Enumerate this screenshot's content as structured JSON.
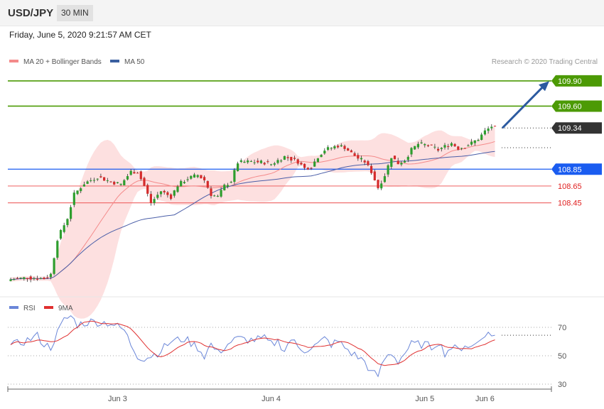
{
  "header": {
    "symbol": "USD/JPY",
    "timeframe": "30 MIN"
  },
  "datetime": "Friday, June 5, 2020 9:21:57 AM CET",
  "copyright": "Research © 2020 Trading Central",
  "colors": {
    "bull": "#2e9e2e",
    "bear": "#d52b2b",
    "green_level": "#4c9a05",
    "blue_level": "#1a5cf0",
    "red_level": "#f07070",
    "ma20": "#f48a8a",
    "ma50": "#4a5ea8",
    "band_fill": "#fde0e0",
    "current": "#333333",
    "arrow": "#2c5aa0",
    "rsi": "#6a86d8",
    "rsi_ma": "#e03030"
  },
  "chart_data": {
    "type": "candlestick",
    "legend": [
      {
        "name": "MA 20 + Bollinger Bands",
        "color": "#f48a8a"
      },
      {
        "name": "MA 50",
        "color": "#3a5fa0"
      }
    ],
    "ylim": [
      107.4,
      109.95
    ],
    "levels": [
      {
        "value": 109.9,
        "label": "109.90",
        "kind": "resistance"
      },
      {
        "value": 109.6,
        "label": "109.60",
        "kind": "resistance"
      },
      {
        "value": 108.85,
        "label": "108.85",
        "kind": "pivot"
      },
      {
        "value": 108.65,
        "label": "108.65",
        "kind": "support"
      },
      {
        "value": 108.45,
        "label": "108.45",
        "kind": "support"
      }
    ],
    "current": {
      "value": 109.34,
      "label": "109.34"
    },
    "x_labels": [
      {
        "label": "Jun 3",
        "bar": 32
      },
      {
        "label": "Jun 4",
        "bar": 78
      },
      {
        "label": "Jun 5",
        "bar": 124
      },
      {
        "label": "Jun 6",
        "bar": 142
      }
    ],
    "projection": {
      "from_bar": 145,
      "from_price": 109.34,
      "to_bar": 158,
      "to_price": 109.88
    },
    "anchors": [
      [
        0,
        107.54
      ],
      [
        5,
        107.56
      ],
      [
        10,
        107.55
      ],
      [
        12,
        107.6
      ],
      [
        14,
        108.02
      ],
      [
        17,
        108.27
      ],
      [
        19,
        108.55
      ],
      [
        22,
        108.68
      ],
      [
        26,
        108.76
      ],
      [
        30,
        108.7
      ],
      [
        33,
        108.67
      ],
      [
        36,
        108.82
      ],
      [
        38,
        108.82
      ],
      [
        40,
        108.65
      ],
      [
        42,
        108.45
      ],
      [
        45,
        108.59
      ],
      [
        48,
        108.52
      ],
      [
        50,
        108.66
      ],
      [
        53,
        108.74
      ],
      [
        56,
        108.78
      ],
      [
        58,
        108.72
      ],
      [
        60,
        108.55
      ],
      [
        62,
        108.52
      ],
      [
        64,
        108.65
      ],
      [
        66,
        108.71
      ],
      [
        68,
        108.93
      ],
      [
        72,
        108.94
      ],
      [
        76,
        108.93
      ],
      [
        78,
        108.91
      ],
      [
        82,
        109.0
      ],
      [
        84,
        108.97
      ],
      [
        86,
        108.94
      ],
      [
        88,
        108.86
      ],
      [
        90,
        108.88
      ],
      [
        92,
        109.0
      ],
      [
        94,
        109.08
      ],
      [
        98,
        109.13
      ],
      [
        100,
        109.11
      ],
      [
        102,
        109.04
      ],
      [
        104,
        108.98
      ],
      [
        106,
        108.94
      ],
      [
        108,
        108.82
      ],
      [
        110,
        108.63
      ],
      [
        112,
        108.78
      ],
      [
        114,
        109.0
      ],
      [
        116,
        108.92
      ],
      [
        118,
        108.96
      ],
      [
        120,
        109.08
      ],
      [
        122,
        109.15
      ],
      [
        124,
        109.14
      ],
      [
        126,
        109.12
      ],
      [
        128,
        109.08
      ],
      [
        130,
        109.12
      ],
      [
        132,
        109.16
      ],
      [
        134,
        109.1
      ],
      [
        136,
        109.12
      ],
      [
        138,
        109.16
      ],
      [
        140,
        109.21
      ],
      [
        142,
        109.3
      ],
      [
        144,
        109.36
      ],
      [
        145,
        109.34
      ]
    ],
    "rsi": {
      "name": "RSI",
      "ma_name": "9MA",
      "ylim": [
        20,
        80
      ],
      "ticks": [
        30,
        50,
        70
      ],
      "anchors": [
        [
          0,
          57
        ],
        [
          4,
          60
        ],
        [
          8,
          64
        ],
        [
          10,
          58
        ],
        [
          12,
          56
        ],
        [
          14,
          66
        ],
        [
          16,
          75
        ],
        [
          18,
          78
        ],
        [
          20,
          72
        ],
        [
          24,
          74
        ],
        [
          30,
          73
        ],
        [
          34,
          68
        ],
        [
          36,
          58
        ],
        [
          38,
          50
        ],
        [
          40,
          48
        ],
        [
          44,
          52
        ],
        [
          48,
          60
        ],
        [
          52,
          62
        ],
        [
          56,
          56
        ],
        [
          58,
          50
        ],
        [
          60,
          58
        ],
        [
          62,
          52
        ],
        [
          64,
          56
        ],
        [
          66,
          60
        ],
        [
          68,
          62
        ],
        [
          72,
          61
        ],
        [
          76,
          62
        ],
        [
          78,
          58
        ],
        [
          80,
          60
        ],
        [
          82,
          54
        ],
        [
          84,
          62
        ],
        [
          86,
          56
        ],
        [
          88,
          54
        ],
        [
          90,
          56
        ],
        [
          92,
          58
        ],
        [
          94,
          62
        ],
        [
          96,
          58
        ],
        [
          98,
          60
        ],
        [
          100,
          56
        ],
        [
          102,
          52
        ],
        [
          104,
          49
        ],
        [
          106,
          46
        ],
        [
          108,
          38
        ],
        [
          110,
          36
        ],
        [
          112,
          48
        ],
        [
          114,
          52
        ],
        [
          116,
          46
        ],
        [
          118,
          52
        ],
        [
          120,
          58
        ],
        [
          124,
          58
        ],
        [
          126,
          56
        ],
        [
          128,
          60
        ],
        [
          130,
          52
        ],
        [
          132,
          56
        ],
        [
          134,
          54
        ],
        [
          136,
          58
        ],
        [
          138,
          56
        ],
        [
          140,
          60
        ],
        [
          142,
          66
        ],
        [
          144,
          64
        ],
        [
          145,
          66
        ]
      ]
    }
  }
}
